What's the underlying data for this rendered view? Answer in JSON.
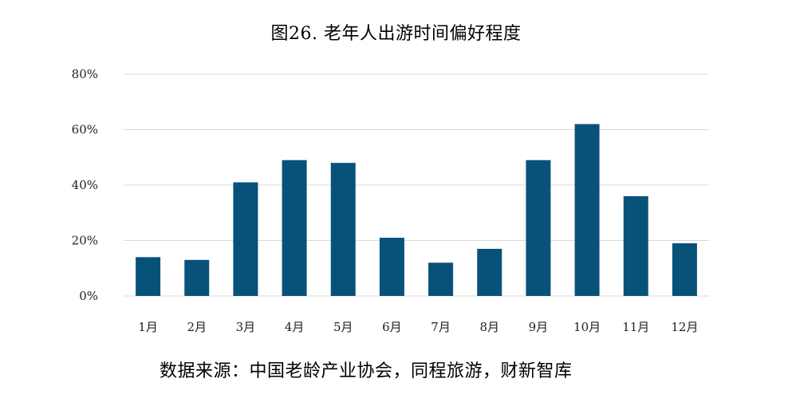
{
  "chart_data": {
    "type": "bar",
    "title": "图26. 老年人出游时间偏好程度",
    "categories": [
      "1月",
      "2月",
      "3月",
      "4月",
      "5月",
      "6月",
      "7月",
      "8月",
      "9月",
      "10月",
      "11月",
      "12月"
    ],
    "values": [
      14,
      13,
      41,
      49,
      48,
      21,
      12,
      17,
      49,
      62,
      36,
      19
    ],
    "ylim": [
      0,
      80
    ],
    "yticks": [
      "0%",
      "20%",
      "40%",
      "60%",
      "80%"
    ],
    "ytick_values": [
      0,
      20,
      40,
      60,
      80
    ],
    "grid": true,
    "legend": "none",
    "bar_color": "#08527A",
    "grid_color": "#D9D9D9",
    "source": "数据来源：中国老龄产业协会，同程旅游，财新智库"
  }
}
